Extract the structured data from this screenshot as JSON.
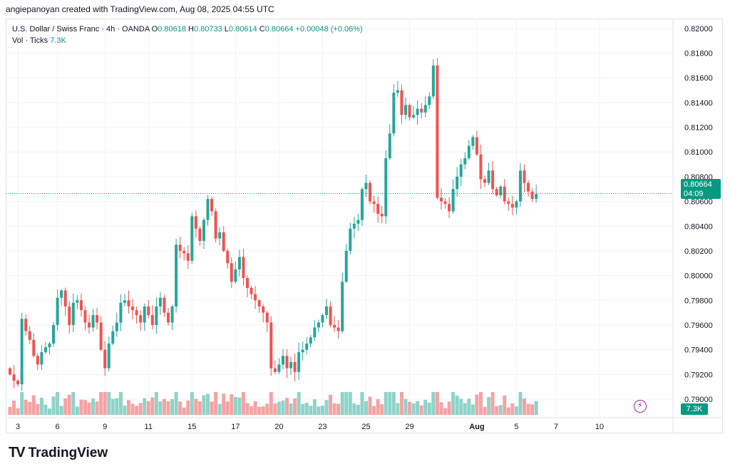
{
  "attribution": "angiepanoyan created with TradingView.com, Aug 08, 2025 04:55 UTC",
  "legend": {
    "symbol": "U.S. Dollar / Swiss Franc · 4h · OANDA",
    "open_label": "O",
    "open": "0.80618",
    "high_label": "H",
    "high": "0.80733",
    "low_label": "L",
    "low": "0.80614",
    "close_label": "C",
    "close": "0.80664",
    "change": "+0.00048 (+0.06%)",
    "vol_label": "Vol · Ticks",
    "vol_value": "7.3K"
  },
  "last_price": {
    "value": "0.80664",
    "countdown": "04:09",
    "vol": "7.3K"
  },
  "brand": {
    "mark": "TV",
    "name": "TradingView"
  },
  "colors": {
    "up": "#26a69a",
    "down": "#ef5350",
    "up_vol": "#8fd3c9",
    "down_vol": "#f5a3a3",
    "accent": "#089981"
  },
  "chart_data": {
    "type": "candlestick",
    "title": "U.S. Dollar / Swiss Franc · 4h · OANDA",
    "ylim": [
      0.7885,
      0.8208
    ],
    "y_ticks": [
      "0.82000",
      "0.81800",
      "0.81600",
      "0.81400",
      "0.81200",
      "0.81000",
      "0.80800",
      "0.80600",
      "0.80400",
      "0.80200",
      "0.80000",
      "0.79800",
      "0.79600",
      "0.79400",
      "0.79200",
      "0.79000"
    ],
    "x_ticks": [
      "3",
      "6",
      "9",
      "11",
      "15",
      "17",
      "20",
      "23",
      "25",
      "29",
      "Aug",
      "5",
      "7",
      "10"
    ],
    "x_tick_bar_index": [
      2,
      12,
      24,
      35,
      46,
      57,
      68,
      79,
      90,
      101,
      118,
      128,
      138,
      149
    ],
    "closes": [
      0.792,
      0.7915,
      0.7912,
      0.7965,
      0.7955,
      0.7948,
      0.7935,
      0.7928,
      0.7938,
      0.7942,
      0.7945,
      0.796,
      0.7982,
      0.7988,
      0.7975,
      0.796,
      0.7978,
      0.798,
      0.7972,
      0.7962,
      0.7958,
      0.7968,
      0.7962,
      0.794,
      0.7925,
      0.7945,
      0.7955,
      0.7962,
      0.7978,
      0.798,
      0.7975,
      0.7972,
      0.7968,
      0.7962,
      0.7975,
      0.7968,
      0.796,
      0.7975,
      0.7982,
      0.797,
      0.7962,
      0.7975,
      0.8025,
      0.802,
      0.8018,
      0.8012,
      0.8048,
      0.8038,
      0.8028,
      0.8045,
      0.8062,
      0.8052,
      0.803,
      0.8035,
      0.802,
      0.801,
      0.7995,
      0.8005,
      0.8015,
      0.7998,
      0.799,
      0.7985,
      0.798,
      0.7975,
      0.797,
      0.7962,
      0.7925,
      0.7922,
      0.7928,
      0.7935,
      0.7925,
      0.793,
      0.7922,
      0.7938,
      0.794,
      0.7945,
      0.795,
      0.7958,
      0.7962,
      0.7968,
      0.7975,
      0.796,
      0.7958,
      0.7955,
      0.7995,
      0.802,
      0.8038,
      0.8042,
      0.8045,
      0.807,
      0.8075,
      0.806,
      0.8058,
      0.805,
      0.8048,
      0.8095,
      0.8115,
      0.8148,
      0.815,
      0.813,
      0.8138,
      0.8128,
      0.813,
      0.8135,
      0.8132,
      0.8138,
      0.8145,
      0.817,
      0.8063,
      0.806,
      0.8058,
      0.8052,
      0.807,
      0.808,
      0.809,
      0.8095,
      0.8105,
      0.8112,
      0.8098,
      0.8078,
      0.8075,
      0.8085,
      0.807,
      0.8065,
      0.8072,
      0.806,
      0.8058,
      0.8055,
      0.806,
      0.8085,
      0.8075,
      0.8068,
      0.8062,
      0.8066
    ],
    "volume_max": 16
  }
}
